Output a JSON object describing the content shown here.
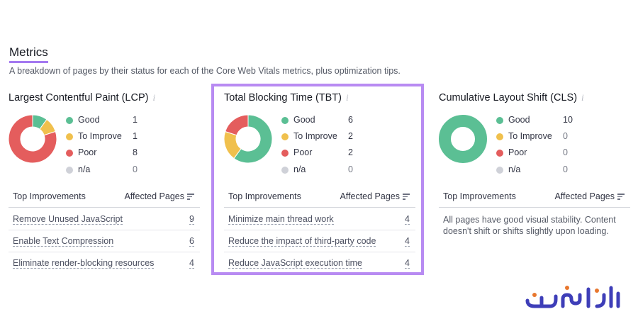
{
  "header": {
    "title": "Metrics",
    "subtitle": "A breakdown of pages by their status for each of the Core Web Vitals metrics, plus optimization tips."
  },
  "colors": {
    "good": "#5bbf94",
    "improve": "#f0c04d",
    "poor": "#e45d5d",
    "na": "#cfd1d8",
    "highlight": "#b88bf2"
  },
  "icons": {
    "info": "info-icon",
    "sort": "sort-icon"
  },
  "legend_labels": [
    "Good",
    "To Improve",
    "Poor",
    "n/a"
  ],
  "cards": [
    {
      "title": "Largest Contentful Paint (LCP)",
      "info": "i",
      "counts": {
        "good": "1",
        "improve": "1",
        "poor": "8",
        "na": "0"
      },
      "values": [
        1,
        1,
        8,
        0
      ],
      "table_head": {
        "left": "Top Improvements",
        "right": "Affected Pages"
      },
      "rows": [
        {
          "label": "Remove Unused JavaScript",
          "count": "9"
        },
        {
          "label": "Enable Text Compression",
          "count": "6"
        },
        {
          "label": "Eliminate render-blocking resources",
          "count": "4"
        }
      ]
    },
    {
      "title": "Total Blocking Time (TBT)",
      "info": "i",
      "counts": {
        "good": "6",
        "improve": "2",
        "poor": "2",
        "na": "0"
      },
      "values": [
        6,
        2,
        2,
        0
      ],
      "table_head": {
        "left": "Top Improvements",
        "right": "Affected Pages"
      },
      "rows": [
        {
          "label": "Minimize main thread work",
          "count": "4"
        },
        {
          "label": "Reduce the impact of third-party code",
          "count": "4"
        },
        {
          "label": "Reduce JavaScript execution time",
          "count": "4"
        }
      ]
    },
    {
      "title": "Cumulative Layout Shift (CLS)",
      "info": "i",
      "counts": {
        "good": "10",
        "improve": "0",
        "poor": "0",
        "na": "0"
      },
      "values": [
        10,
        0,
        0,
        0
      ],
      "table_head": {
        "left": "Top Improvements",
        "right": "Affected Pages"
      },
      "note": "All pages have good visual stability. Content doesn't shift or shifts slightly upon loading."
    }
  ],
  "brand": {
    "logo_text": "ایران سرور"
  }
}
